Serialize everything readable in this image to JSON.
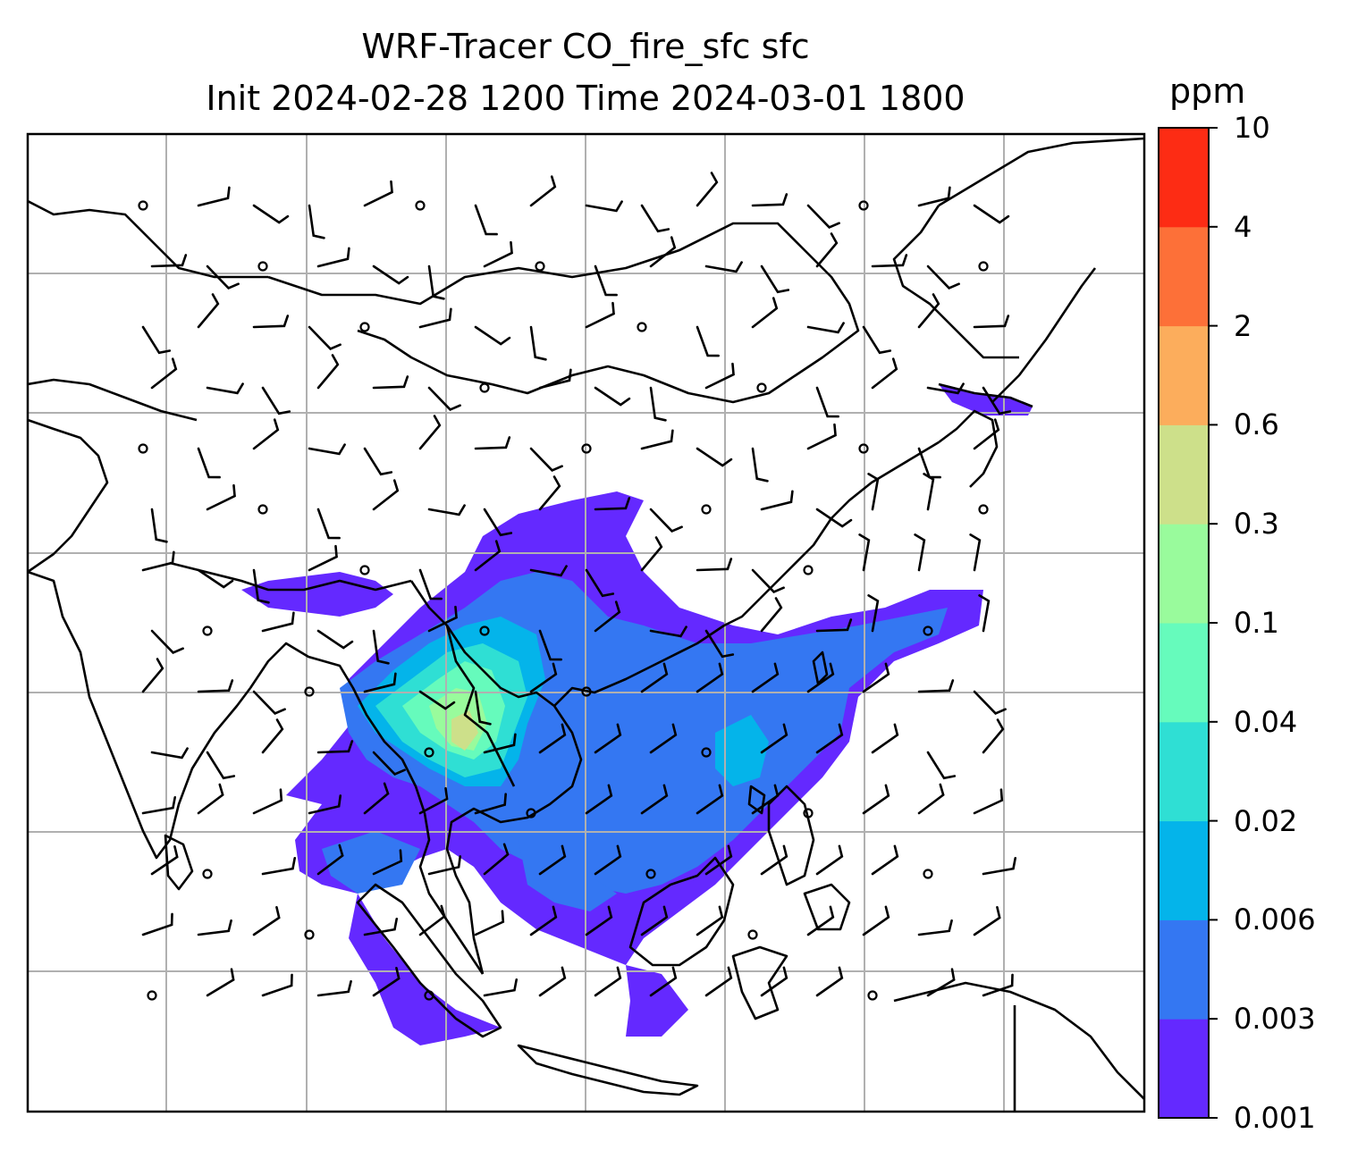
{
  "title": {
    "line1": "WRF-Tracer CO_fire_sfc sfc",
    "line2": "Init 2024-02-28 1200 Time 2024-03-01 1800"
  },
  "colorbar": {
    "unit": "ppm",
    "levels": [
      "0.001",
      "0.003",
      "0.006",
      "0.02",
      "0.04",
      "0.1",
      "0.3",
      "0.6",
      "2",
      "4",
      "10"
    ],
    "colors": [
      "#6429ff",
      "#3477f2",
      "#04b4ea",
      "#2fdfd4",
      "#66fbbc",
      "#99fb9c",
      "#cde08a",
      "#fcad5c",
      "#fd7038",
      "#fd2c14"
    ]
  },
  "map": {
    "grid": "on",
    "variable": "CO_fire_sfc",
    "overlay": "wind barbs"
  }
}
